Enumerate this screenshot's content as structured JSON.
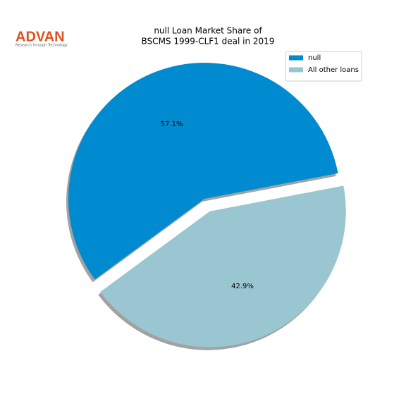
{
  "logo": {
    "name": "ADVAN",
    "tagline": "Research through Technology"
  },
  "chart_data": {
    "type": "pie",
    "title": [
      "null Loan Market Share of",
      "BSCMS 1999-CLF1 deal in 2019"
    ],
    "categories": [
      "null",
      "All other loans"
    ],
    "values": [
      57.1,
      42.9
    ],
    "value_labels": [
      "57.1%",
      "42.9%"
    ],
    "colors": [
      "#008bd0",
      "#99c6d0"
    ],
    "explode": [
      0,
      0.1
    ],
    "shadow": true,
    "legend": "upper right"
  }
}
